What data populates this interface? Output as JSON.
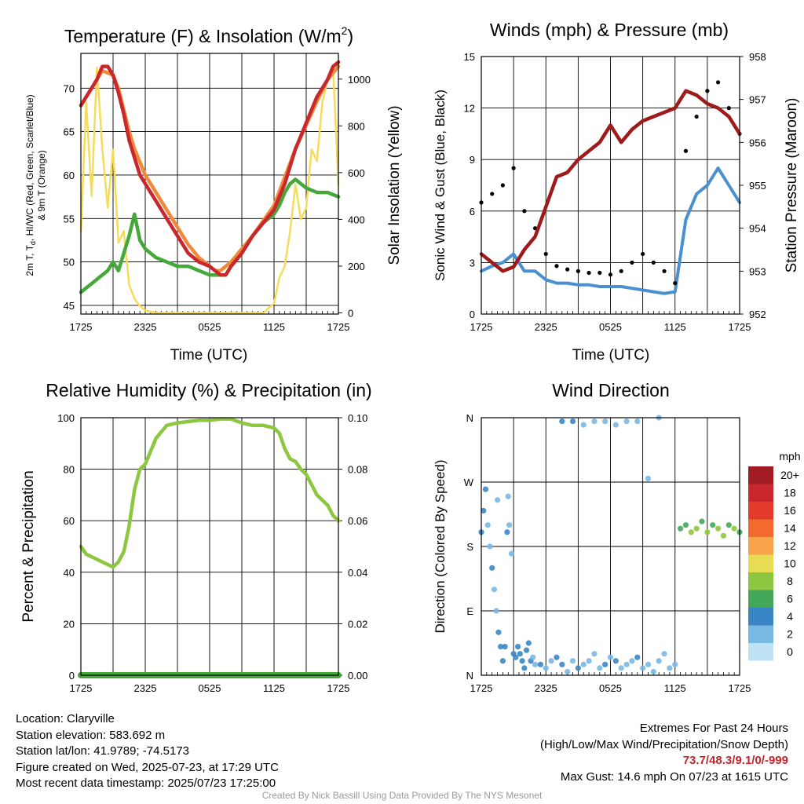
{
  "panels": {
    "temperature": {
      "title": "Temperature (F) & Insolation (W/m",
      "title_sup": "2",
      "title_close": ")",
      "ylabel_left_line1": "2m T, T",
      "ylabel_left_sub": "d",
      "ylabel_left_line1b": ", HI/WC (Red, Green, Scarlet/Blue)",
      "ylabel_left_line2": "& 9m T (Orange)",
      "ylabel_right": "Solar Insolation (Yellow)",
      "xlabel": "Time (UTC)"
    },
    "winds": {
      "title": "Winds (mph) & Pressure (mb)",
      "ylabel_left": "Sonic Wind & Gust (Blue, Black)",
      "ylabel_right": "Station Pressure (Maroon)",
      "xlabel": "Time (UTC)"
    },
    "humidity": {
      "title": "Relative Humidity (%) & Precipitation (in)",
      "ylabel_left": "Percent & Precipitation"
    },
    "direction": {
      "title": "Wind Direction",
      "ylabel_left": "Direction (Colored By Speed)",
      "legend_title": "mph",
      "legend_labels": [
        "20+",
        "18",
        "16",
        "14",
        "12",
        "10",
        "8",
        "6",
        "4",
        "2",
        "0"
      ],
      "legend_colors": [
        "#a01c22",
        "#c8282d",
        "#e23a2b",
        "#f26a2e",
        "#f9a34a",
        "#e6dd55",
        "#8dc63f",
        "#43a85a",
        "#3a86c4",
        "#7ab8e4",
        "#bfe3f5"
      ]
    }
  },
  "info": {
    "location": "Location: Claryville",
    "elevation": "Station elevation: 583.692 m",
    "latlon": "Station lat/lon: 41.9789; -74.5173",
    "created": "Figure created on Wed, 2025-07-23, at 17:29 UTC",
    "recent": "Most recent data timestamp: 2025/07/23 17:25:00",
    "extremes_title": "Extremes For Past 24 Hours",
    "extremes_legend": "(High/Low/Max Wind/Precipitation/Snow Depth)",
    "extremes_values": "73.7/48.3/9.1/0/-999",
    "max_gust": "Max Gust: 14.6 mph On 07/23 at 1615 UTC",
    "credit": "Created By Nick Bassill Using Data Provided By The NYS Mesonet"
  },
  "chart_data": [
    {
      "type": "line",
      "title": "Temperature (F) & Insolation (W/m2)",
      "xlabel": "Time (UTC)",
      "x_ticks": [
        "1725",
        "2325",
        "0525",
        "1125",
        "1725"
      ],
      "x_hours": [
        0,
        6,
        12,
        18,
        24
      ],
      "ylim": [
        44,
        74
      ],
      "y_ticks": [
        45,
        50,
        55,
        60,
        65,
        70
      ],
      "y2lim": [
        -5,
        1110
      ],
      "y2_ticks": [
        0,
        200,
        400,
        600,
        800,
        1000
      ],
      "grid": true,
      "series": [
        {
          "name": "2m T",
          "color": "#c8282d",
          "axis": "left",
          "x": [
            0,
            0.5,
            1.0,
            1.5,
            2.0,
            2.5,
            3.0,
            3.5,
            4.0,
            4.5,
            5.0,
            5.5,
            6.0,
            6.5,
            7.0,
            8.0,
            9.0,
            10.0,
            11.0,
            12.0,
            12.5,
            13.0,
            13.5,
            14.0,
            15.0,
            16.0,
            17.0,
            18.0,
            18.5,
            19.0,
            19.5,
            20.0,
            20.5,
            21.0,
            21.5,
            22.0,
            22.5,
            23.0,
            23.5,
            24.0
          ],
          "y": [
            68,
            69,
            70,
            71,
            72.5,
            72.5,
            71.5,
            69.5,
            67,
            64,
            62,
            60,
            59,
            58,
            57,
            55,
            53,
            51,
            50,
            49.5,
            49,
            48.5,
            48.5,
            49.5,
            51,
            53,
            54.5,
            56,
            57.5,
            59,
            61,
            63,
            64.5,
            66,
            67.5,
            69,
            70,
            71,
            72.5,
            73
          ]
        },
        {
          "name": "9m T",
          "color": "#f08a3a",
          "axis": "left",
          "x": [
            0,
            1.0,
            2.0,
            3.0,
            3.5,
            4.0,
            4.5,
            5.0,
            6.0,
            7.0,
            8.0,
            9.0,
            10.0,
            11.0,
            12.0,
            12.5,
            13.0,
            14.0,
            16.0,
            18.0,
            20.0,
            22.0,
            23.0,
            24.0
          ],
          "y": [
            68,
            70,
            72,
            71.5,
            70,
            67.5,
            65,
            63,
            60,
            58,
            56,
            54,
            52,
            50.5,
            49.5,
            49,
            49,
            50,
            53,
            56.5,
            63,
            68.5,
            71,
            72.5
          ]
        },
        {
          "name": "Td",
          "color": "#45a93a",
          "axis": "left",
          "x": [
            0,
            0.5,
            1.0,
            1.5,
            2.0,
            2.5,
            3.0,
            3.5,
            4.0,
            4.5,
            5.0,
            5.5,
            6.0,
            7.0,
            8.0,
            9.0,
            10.0,
            11.0,
            12.0,
            12.5,
            13.0,
            13.5,
            14.0,
            15.0,
            16.0,
            17.0,
            18.0,
            18.5,
            19.0,
            19.5,
            20.0,
            21.0,
            22.0,
            23.0,
            24.0
          ],
          "y": [
            46.5,
            47,
            47.5,
            48,
            48.5,
            49,
            50,
            49,
            51,
            53,
            55.5,
            52.5,
            51.5,
            50.5,
            50,
            49.5,
            49.5,
            49,
            48.5,
            48.5,
            48.5,
            48.5,
            49.5,
            51,
            53,
            54.5,
            55.5,
            56.5,
            58,
            59,
            59.5,
            58.5,
            58,
            58,
            57.5
          ]
        },
        {
          "name": "Insolation",
          "color": "#f7dc5c",
          "axis": "right",
          "x": [
            0,
            0.5,
            1.0,
            1.5,
            2.0,
            2.5,
            3.0,
            3.5,
            4.0,
            4.5,
            5.0,
            5.5,
            6.0,
            7.0,
            12.0,
            17.0,
            18.0,
            18.5,
            19.0,
            19.5,
            20.0,
            20.5,
            21.0,
            21.5,
            22.0,
            22.5,
            23.0,
            23.5,
            24.0
          ],
          "y": [
            350,
            900,
            500,
            1050,
            700,
            450,
            700,
            300,
            350,
            120,
            60,
            30,
            10,
            0,
            0,
            0,
            40,
            150,
            200,
            350,
            550,
            400,
            450,
            700,
            650,
            900,
            1000,
            1050,
            550
          ]
        }
      ]
    },
    {
      "type": "line",
      "title": "Winds (mph) & Pressure (mb)",
      "xlabel": "Time (UTC)",
      "x_ticks": [
        "1725",
        "2325",
        "0525",
        "1125",
        "1725"
      ],
      "x_hours": [
        0,
        6,
        12,
        18,
        24
      ],
      "ylim": [
        0,
        15
      ],
      "y_ticks": [
        0,
        3,
        6,
        9,
        12,
        15
      ],
      "y2lim": [
        952,
        958
      ],
      "y2_ticks": [
        952,
        953,
        954,
        955,
        956,
        957,
        958
      ],
      "grid": true,
      "series": [
        {
          "name": "Sonic Wind",
          "color": "#4a90d0",
          "axis": "left",
          "x": [
            0,
            1.0,
            2.0,
            3.0,
            4.0,
            5.0,
            6.0,
            7.0,
            8.0,
            9.0,
            10.0,
            11.0,
            12.0,
            13.0,
            14.0,
            15.0,
            16.0,
            17.0,
            18.0,
            19.0,
            20.0,
            21.0,
            22.0,
            23.0,
            24.0
          ],
          "y": [
            2.5,
            2.8,
            3.0,
            3.5,
            2.5,
            2.5,
            2.0,
            1.8,
            1.8,
            1.7,
            1.7,
            1.6,
            1.6,
            1.6,
            1.5,
            1.4,
            1.3,
            1.2,
            1.3,
            5.5,
            7.0,
            7.5,
            8.5,
            7.5,
            6.5
          ]
        },
        {
          "name": "Gust",
          "color": "#000000",
          "axis": "left",
          "x": [
            0,
            1.0,
            2.0,
            3.0,
            4.0,
            5.0,
            6.0,
            7.0,
            8.0,
            9.0,
            10.0,
            11.0,
            12.0,
            13.0,
            14.0,
            15.0,
            16.0,
            17.0,
            18.0,
            19.0,
            20.0,
            21.0,
            22.0,
            23.0,
            24.0
          ],
          "y": [
            6.5,
            7.0,
            7.5,
            8.5,
            6.0,
            5.0,
            3.5,
            2.8,
            2.6,
            2.5,
            2.4,
            2.4,
            2.3,
            2.5,
            3.0,
            3.5,
            3.0,
            2.5,
            1.8,
            9.5,
            11.5,
            13.0,
            13.5,
            12.0,
            10.5
          ]
        },
        {
          "name": "Pressure",
          "color": "#9e1b1b",
          "axis": "right",
          "x": [
            0,
            1.0,
            2.0,
            3.0,
            4.0,
            5.0,
            6.0,
            7.0,
            8.0,
            9.0,
            10.0,
            11.0,
            12.0,
            13.0,
            14.0,
            15.0,
            16.0,
            17.0,
            18.0,
            19.0,
            20.0,
            21.0,
            22.0,
            23.0,
            24.0
          ],
          "y": [
            953.4,
            953.2,
            953.0,
            953.1,
            953.5,
            953.8,
            954.5,
            955.2,
            955.3,
            955.6,
            955.8,
            956.0,
            956.4,
            956.0,
            956.3,
            956.5,
            956.6,
            956.7,
            956.8,
            957.2,
            957.1,
            956.9,
            956.8,
            956.6,
            956.2
          ]
        }
      ]
    },
    {
      "type": "line",
      "title": "Relative Humidity (%) & Precipitation (in)",
      "x_ticks": [
        "1725",
        "2325",
        "0525",
        "1125",
        "1725"
      ],
      "x_hours": [
        0,
        6,
        12,
        18,
        24
      ],
      "ylim": [
        0,
        100
      ],
      "y_ticks": [
        0,
        20,
        40,
        60,
        80,
        100
      ],
      "y2lim": [
        0,
        0.1
      ],
      "y2_ticks": [
        "0.00",
        "0.02",
        "0.04",
        "0.06",
        "0.08",
        "0.10"
      ],
      "grid": true,
      "series": [
        {
          "name": "RH",
          "color": "#8dc63f",
          "axis": "left",
          "x": [
            0,
            0.5,
            1.0,
            1.5,
            2.0,
            2.5,
            3.0,
            3.5,
            4.0,
            4.5,
            5.0,
            5.5,
            6.0,
            7.0,
            8.0,
            9.0,
            10.0,
            11.0,
            12.0,
            13.0,
            14.0,
            15.0,
            16.0,
            17.0,
            18.0,
            18.5,
            19.0,
            19.5,
            20.0,
            20.5,
            21.0,
            21.5,
            22.0,
            22.5,
            23.0,
            23.5,
            24.0
          ],
          "y": [
            50,
            47,
            46,
            45,
            44,
            43,
            42,
            44,
            48,
            58,
            72,
            80,
            82,
            92,
            97,
            98,
            98.5,
            99,
            99,
            99.5,
            99.5,
            98,
            97,
            97,
            96,
            94,
            88,
            84,
            83,
            80,
            78,
            74,
            70,
            68,
            66,
            62,
            60
          ]
        },
        {
          "name": "Precipitation",
          "color": "#45a93a",
          "axis": "right",
          "x": [
            0,
            24
          ],
          "y": [
            0,
            0
          ]
        }
      ]
    },
    {
      "type": "scatter",
      "title": "Wind Direction",
      "x_ticks": [
        "1725",
        "2325",
        "0525",
        "1125",
        "1725"
      ],
      "x_hours": [
        0,
        6,
        12,
        18,
        24
      ],
      "y_ticks": [
        "N",
        "E",
        "S",
        "W",
        "N"
      ],
      "ylim": [
        0,
        360
      ],
      "grid": true,
      "series": [
        {
          "name": "direction",
          "x": [
            0,
            0.2,
            0.4,
            0.6,
            0.8,
            1.0,
            1.2,
            1.4,
            1.6,
            1.8,
            2.0,
            2.2,
            2.4,
            2.6,
            2.8,
            3.0,
            3.2,
            3.4,
            3.6,
            3.8,
            4.0,
            4.2,
            4.4,
            4.6,
            4.8,
            5.0,
            5.5,
            6.0,
            6.5,
            7.0,
            7.5,
            8.0,
            8.5,
            9.0,
            9.5,
            10.0,
            10.5,
            11.0,
            11.5,
            12.0,
            12.5,
            13.0,
            13.5,
            14.0,
            14.5,
            15.0,
            15.5,
            16.0,
            16.5,
            17.0,
            17.5,
            18.0,
            18.5,
            19.0,
            19.5,
            20.0,
            20.5,
            21.0,
            21.5,
            22.0,
            22.5,
            23.0,
            23.5,
            24.0,
            1.5,
            2.5,
            7.5,
            8.5,
            9.5,
            10.5,
            11.5,
            12.5,
            13.5,
            14.5,
            15.5,
            16.5
          ],
          "y": [
            200,
            230,
            260,
            210,
            180,
            150,
            120,
            90,
            60,
            40,
            20,
            40,
            200,
            210,
            170,
            30,
            25,
            40,
            30,
            20,
            10,
            35,
            45,
            20,
            25,
            15,
            15,
            10,
            20,
            25,
            15,
            5,
            20,
            10,
            15,
            20,
            30,
            10,
            15,
            25,
            20,
            10,
            15,
            20,
            25,
            10,
            15,
            5,
            20,
            30,
            10,
            15,
            205,
            210,
            200,
            205,
            215,
            200,
            210,
            205,
            195,
            210,
            205,
            200,
            245,
            250,
            355,
            355,
            350,
            355,
            355,
            350,
            355,
            355,
            275,
            360
          ],
          "speed": [
            4,
            3,
            3,
            2,
            2,
            3,
            2,
            2,
            3,
            4,
            3,
            4,
            3,
            2,
            2,
            4,
            4,
            4,
            3,
            4,
            3,
            4,
            3,
            3,
            2,
            2,
            3,
            2,
            2,
            3,
            3,
            2,
            2,
            3,
            2,
            2,
            2,
            2,
            3,
            2,
            3,
            2,
            2,
            2,
            3,
            2,
            2,
            1,
            2,
            2,
            1,
            2,
            6,
            6,
            7,
            8,
            6,
            8,
            6,
            7,
            8,
            6,
            7,
            6,
            2,
            2,
            3,
            3,
            2,
            2,
            2,
            2,
            2,
            1,
            1,
            1
          ]
        }
      ]
    }
  ]
}
